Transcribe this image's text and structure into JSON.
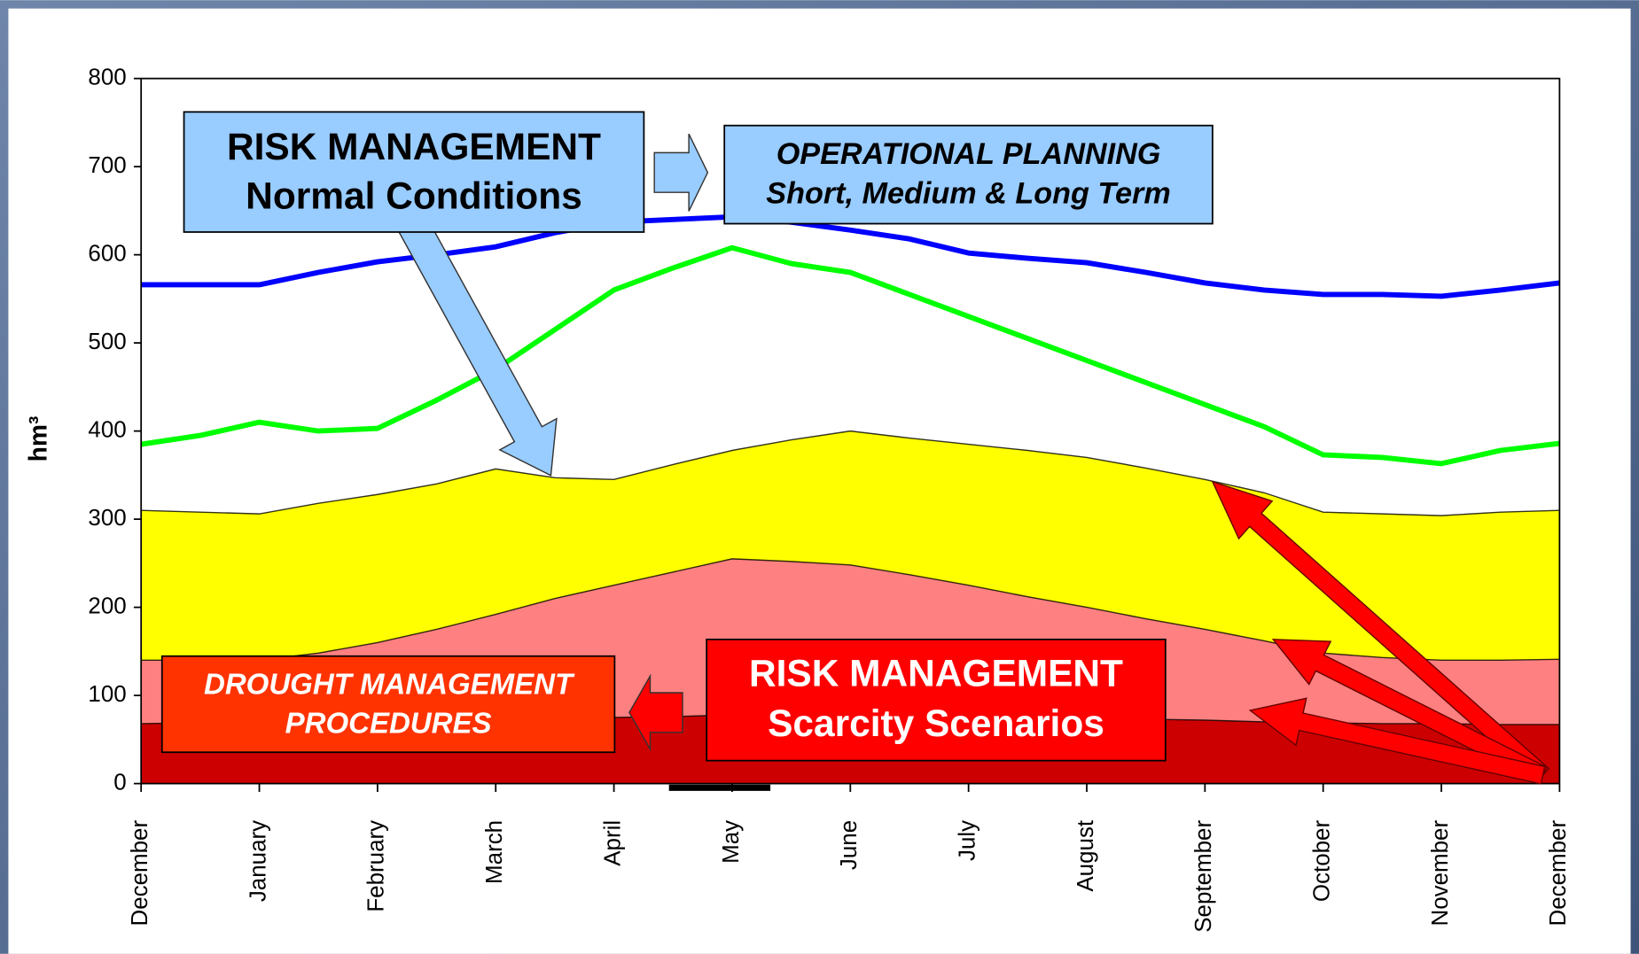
{
  "chart_data": {
    "type": "area-line",
    "y_label": "hm³",
    "categories": [
      "December",
      null,
      "January",
      null,
      "February",
      null,
      "March",
      null,
      "April",
      null,
      "May",
      null,
      "June",
      null,
      "July",
      null,
      "August",
      null,
      "September",
      null,
      "October",
      null,
      "November",
      null,
      "December"
    ],
    "ylim": [
      0,
      800
    ],
    "yticks": [
      0,
      100,
      200,
      300,
      400,
      500,
      600,
      700,
      800
    ],
    "series": [
      {
        "kind": "area",
        "color": "#ffff00",
        "values": [
          310,
          308,
          306,
          318,
          328,
          340,
          357,
          347,
          345,
          362,
          378,
          390,
          400,
          392,
          385,
          378,
          370,
          358,
          345,
          330,
          308,
          306,
          304,
          308,
          310
        ]
      },
      {
        "kind": "area",
        "color": "#ff8080",
        "values": [
          140,
          140,
          140,
          148,
          160,
          175,
          192,
          210,
          225,
          240,
          255,
          252,
          248,
          237,
          225,
          212,
          200,
          187,
          175,
          162,
          148,
          143,
          140,
          140,
          141
        ]
      },
      {
        "kind": "area",
        "color": "#cc0000",
        "values": [
          68,
          69,
          70,
          71,
          72,
          73,
          74,
          75,
          75,
          76,
          78,
          78,
          78,
          77,
          76,
          75,
          74,
          73,
          72,
          70,
          69,
          68,
          68,
          67,
          67
        ]
      },
      {
        "kind": "line",
        "color": "#00ff00",
        "values": [
          385,
          395,
          410,
          400,
          403,
          435,
          470,
          515,
          560,
          585,
          608,
          590,
          580,
          555,
          530,
          505,
          480,
          455,
          430,
          405,
          373,
          370,
          363,
          378,
          386
        ]
      },
      {
        "kind": "line",
        "color": "#0000ff",
        "values": [
          566,
          566,
          566,
          580,
          592,
          600,
          609,
          625,
          637,
          640,
          643,
          637,
          628,
          618,
          602,
          596,
          591,
          580,
          568,
          560,
          555,
          555,
          553,
          560,
          568
        ]
      }
    ],
    "annotations": [
      {
        "lines": [
          "RISK MANAGEMENT",
          "Normal Conditions"
        ]
      },
      {
        "lines": [
          "OPERATIONAL PLANNING",
          "Short, Medium & Long Term"
        ]
      },
      {
        "lines": [
          "DROUGHT MANAGEMENT",
          "PROCEDURES"
        ]
      },
      {
        "lines": [
          "RISK MANAGEMENT",
          "Scarcity Scenarios"
        ]
      }
    ]
  }
}
